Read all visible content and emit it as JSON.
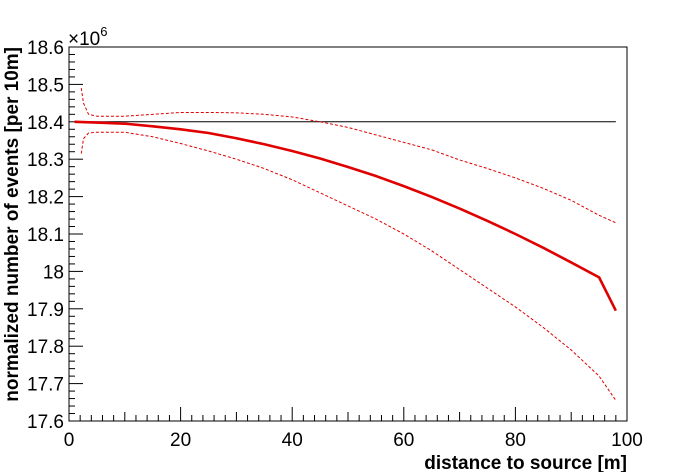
{
  "chart_data": {
    "type": "line",
    "title": "",
    "xlabel": "distance to source [m]",
    "ylabel": "normalized number of events [per 10m]",
    "xlim": [
      0,
      100
    ],
    "ylim": [
      17.6,
      18.6
    ],
    "y_multiplier": {
      "base": "×10",
      "exponent": "6"
    },
    "x_ticks": [
      "0",
      "20",
      "40",
      "60",
      "80",
      "100"
    ],
    "y_ticks": [
      "17.6",
      "17.7",
      "17.8",
      "17.9",
      "18",
      "18.1",
      "18.2",
      "18.3",
      "18.4",
      "18.5",
      "18.6"
    ],
    "grid": false,
    "legend": "none",
    "series": [
      {
        "style": "solid-thin",
        "color": "#000000",
        "x": [
          1,
          98
        ],
        "y": [
          18.4,
          18.4
        ]
      },
      {
        "style": "solid-thick",
        "color": "#e00000",
        "x": [
          1,
          5,
          10,
          15,
          20,
          25,
          30,
          35,
          40,
          45,
          50,
          55,
          60,
          65,
          70,
          75,
          80,
          85,
          90,
          95,
          98
        ],
        "y": [
          18.4,
          18.398,
          18.395,
          18.388,
          18.38,
          18.37,
          18.356,
          18.34,
          18.322,
          18.302,
          18.279,
          18.255,
          18.228,
          18.199,
          18.168,
          18.135,
          18.1,
          18.063,
          18.024,
          17.984,
          17.895
        ]
      },
      {
        "style": "dashed",
        "color": "#e00000",
        "x": [
          2.2,
          2.6,
          3.5,
          5,
          10,
          15,
          20,
          25,
          30,
          35,
          40,
          45,
          50,
          55,
          60,
          65,
          70,
          75,
          80,
          85,
          90,
          95,
          98
        ],
        "y": [
          18.49,
          18.45,
          18.42,
          18.415,
          18.415,
          18.42,
          18.425,
          18.425,
          18.424,
          18.42,
          18.413,
          18.4,
          18.385,
          18.365,
          18.345,
          18.325,
          18.298,
          18.275,
          18.25,
          18.222,
          18.19,
          18.15,
          18.13
        ]
      },
      {
        "style": "dashed",
        "color": "#e00000",
        "x": [
          2.2,
          2.6,
          3.5,
          5,
          10,
          15,
          20,
          25,
          30,
          35,
          40,
          45,
          50,
          55,
          60,
          65,
          70,
          75,
          80,
          85,
          90,
          95,
          98
        ],
        "y": [
          18.315,
          18.355,
          18.37,
          18.372,
          18.372,
          18.36,
          18.342,
          18.322,
          18.3,
          18.275,
          18.245,
          18.21,
          18.175,
          18.14,
          18.1,
          18.055,
          18.005,
          17.955,
          17.905,
          17.85,
          17.79,
          17.72,
          17.655
        ]
      }
    ]
  }
}
